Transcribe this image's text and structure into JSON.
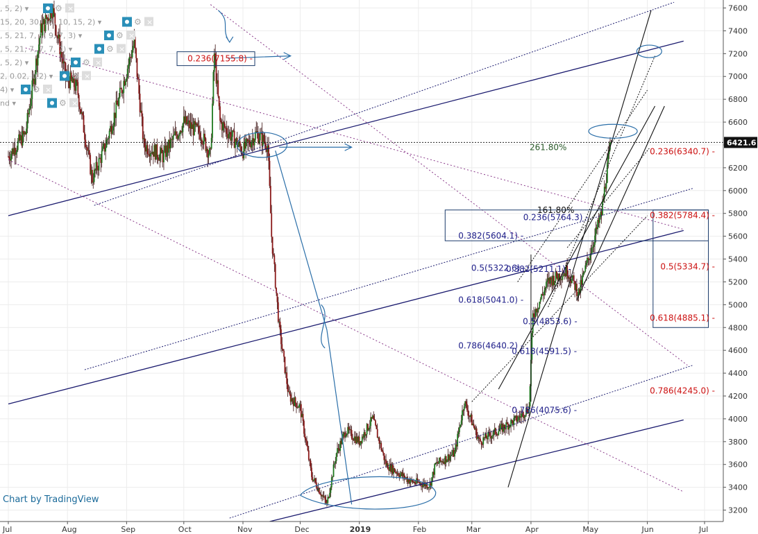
{
  "chart_data": {
    "type": "line",
    "subtype": "candlestick",
    "symbol": "BTCUSD",
    "price_axis": {
      "ticks": [
        3200,
        3400,
        3600,
        3800,
        4000,
        4200,
        4400,
        4600,
        4800,
        5000,
        5200,
        5400,
        5600,
        5800,
        6000,
        6200,
        6400,
        6600,
        6800,
        7000,
        7200,
        7400,
        7600
      ],
      "ylim": [
        3100,
        7670
      ],
      "current_price_label": "6421.6",
      "current_price": 6421.6
    },
    "time_axis": {
      "labels": [
        "Jul",
        "Aug",
        "Sep",
        "Oct",
        "Nov",
        "Dec",
        "2019",
        "Feb",
        "Mar",
        "Apr",
        "May",
        "Jun",
        "Jul"
      ],
      "dates": [
        "2018-07-01",
        "2018-08-01",
        "2018-09-01",
        "2018-10-01",
        "2018-11-01",
        "2018-12-01",
        "2019-01-01",
        "2019-02-01",
        "2019-03-01",
        "2019-04-01",
        "2019-05-01",
        "2019-06-01",
        "2019-07-01"
      ]
    },
    "price_path": [
      [
        "2018-07-01",
        6300
      ],
      [
        "2018-07-10",
        6500
      ],
      [
        "2018-07-18",
        7400
      ],
      [
        "2018-07-24",
        7600
      ],
      [
        "2018-07-31",
        7000
      ],
      [
        "2018-08-06",
        6900
      ],
      [
        "2018-08-14",
        6100
      ],
      [
        "2018-08-21",
        6400
      ],
      [
        "2018-08-28",
        6800
      ],
      [
        "2018-09-05",
        7300
      ],
      [
        "2018-09-10",
        6400
      ],
      [
        "2018-09-20",
        6300
      ],
      [
        "2018-10-01",
        6600
      ],
      [
        "2018-10-10",
        6500
      ],
      [
        "2018-10-15",
        6300
      ],
      [
        "2018-10-17",
        7200
      ],
      [
        "2018-10-20",
        6600
      ],
      [
        "2018-11-01",
        6350
      ],
      [
        "2018-11-08",
        6500
      ],
      [
        "2018-11-14",
        6400
      ],
      [
        "2018-11-16",
        5600
      ],
      [
        "2018-11-20",
        4800
      ],
      [
        "2018-11-25",
        4200
      ],
      [
        "2018-12-01",
        4100
      ],
      [
        "2018-12-07",
        3500
      ],
      [
        "2018-12-15",
        3250
      ],
      [
        "2018-12-20",
        3700
      ],
      [
        "2018-12-25",
        3900
      ],
      [
        "2019-01-01",
        3800
      ],
      [
        "2019-01-08",
        4000
      ],
      [
        "2019-01-15",
        3600
      ],
      [
        "2019-01-28",
        3450
      ],
      [
        "2019-02-07",
        3420
      ],
      [
        "2019-02-10",
        3600
      ],
      [
        "2019-02-20",
        3700
      ],
      [
        "2019-02-25",
        4150
      ],
      [
        "2019-03-05",
        3800
      ],
      [
        "2019-03-15",
        3900
      ],
      [
        "2019-03-25",
        4000
      ],
      [
        "2019-03-31",
        4100
      ],
      [
        "2019-04-02",
        4900
      ],
      [
        "2019-04-10",
        5200
      ],
      [
        "2019-04-20",
        5300
      ],
      [
        "2019-04-26",
        5100
      ],
      [
        "2019-05-01",
        5400
      ],
      [
        "2019-05-08",
        5800
      ],
      [
        "2019-05-11",
        6200
      ],
      [
        "2019-05-13",
        6421.6
      ]
    ],
    "fibonacci_left": [
      {
        "label": "0.236(7155.8)",
        "level": 7155.8
      },
      {
        "label": "0.236(5764.3)",
        "level": 5764.3
      },
      {
        "label": "0.382(5604.1)",
        "level": 5604.1
      },
      {
        "label": "0.5(5322.6)",
        "level": 5322.6
      },
      {
        "label": "0.382(5211.1)",
        "level": 5211.1
      },
      {
        "label": "0.618(5041.0)",
        "level": 5041.0
      },
      {
        "label": "0.5(4853.6)",
        "level": 4853.6
      },
      {
        "label": "0.786(4640.2)",
        "level": 4640.2
      },
      {
        "label": "0.618(4591.5)",
        "level": 4591.5
      },
      {
        "label": "0.786(4075.6)",
        "level": 4075.6
      }
    ],
    "fibonacci_right": [
      {
        "label": "0.236(6340.7)",
        "level": 6340.7
      },
      {
        "label": "0.382(5784.4)",
        "level": 5784.4
      },
      {
        "label": "0.5(5334.7)",
        "level": 5334.7
      },
      {
        "label": "0.618(4885.1)",
        "level": 4885.1
      },
      {
        "label": "0.786(4245.0)",
        "level": 4245.0
      }
    ],
    "extensions": [
      {
        "label": "261.80%",
        "level": 6380
      },
      {
        "label": "161.80%",
        "level": 5830
      }
    ],
    "grid": true,
    "legend": "top-left"
  },
  "watermark": "Chart by TradingView",
  "indicators": [
    ", 5, 2)",
    "15, 20, 30, 10, 10, 15, 2)",
    ", 5, 21, 7, 1, 9, 7, 3)",
    ", 5, 21, 7, 7, 7, 7)",
    ", 5, 2)",
    "2, 0.02, 0.2)",
    "4)",
    "nd"
  ],
  "colors": {
    "candle_up": "#1f7a1f",
    "candle_down": "#8b1a1a",
    "trend_navy": "#1a1a6e",
    "channel_purple": "#8a3a8a",
    "fib_red": "#cc1111",
    "fib_blue": "#20208a",
    "annotation_blue": "#2a6ea8",
    "ext_green": "#2a5a2a"
  }
}
